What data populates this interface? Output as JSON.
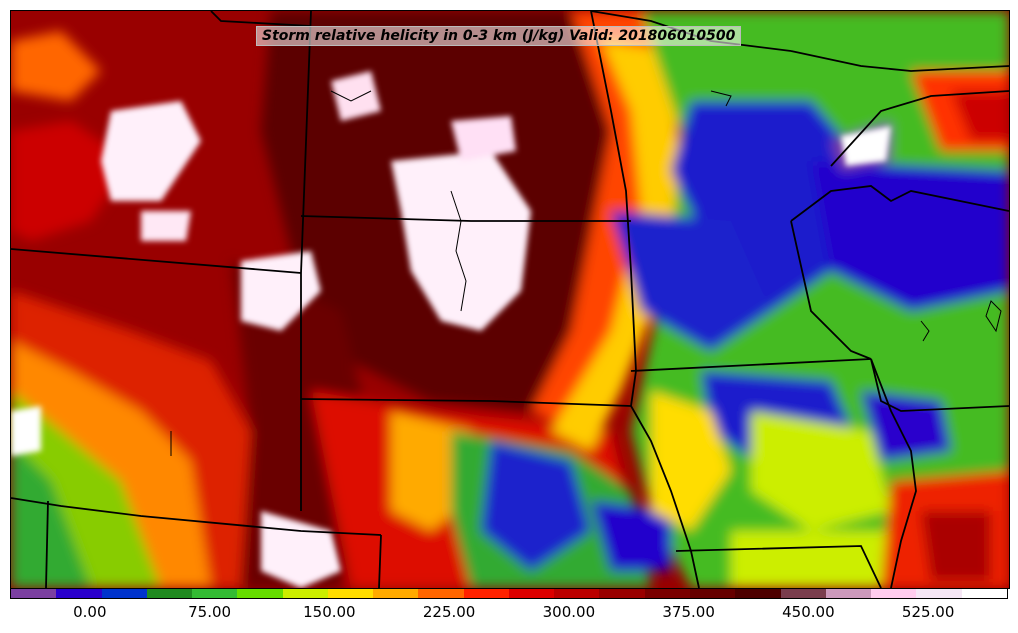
{
  "title": "Storm relative helicity in 0-3 km (J/kg) Valid: 201806010500",
  "colorbar": {
    "colors": [
      "#7b3fa0",
      "#2a00cc",
      "#0033cc",
      "#1f8a1f",
      "#33bb33",
      "#66dd00",
      "#ccee00",
      "#ffdd00",
      "#ffaa00",
      "#ff6600",
      "#ff2200",
      "#dd0000",
      "#bb0000",
      "#990000",
      "#7a0000",
      "#660000",
      "#4d0000",
      "#7a3d4d",
      "#cc99bb",
      "#ffccee",
      "#f5e6f5",
      "#ffffff"
    ],
    "tick_labels": [
      "0.00",
      "75.00",
      "150.00",
      "225.00",
      "300.00",
      "375.00",
      "450.00",
      "525.00"
    ],
    "range": [
      -50,
      575
    ]
  },
  "map": {
    "field": "Storm relative helicity in 0-3 km",
    "units": "J/kg",
    "valid": "201806010500"
  }
}
